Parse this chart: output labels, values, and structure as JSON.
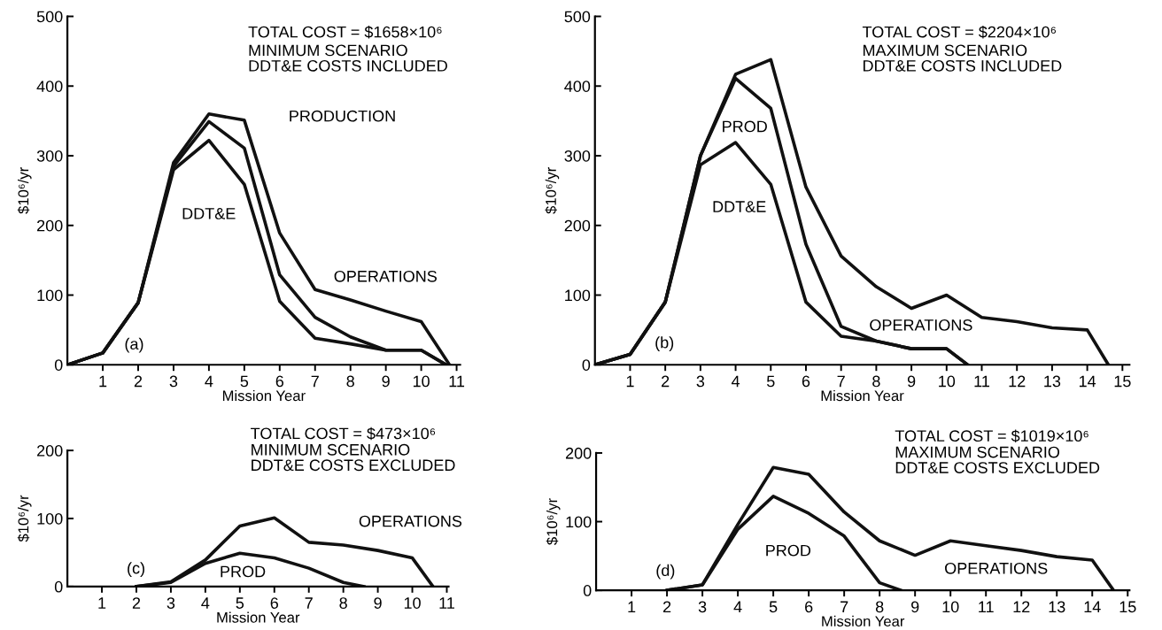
{
  "chart_data": [
    {
      "type": "line",
      "title": "TOTAL COST = $1658×10⁶",
      "subtitle": "MINIMUM SCENARIO\nDDT&E COSTS INCLUDED",
      "xlabel": "Mission Year",
      "ylabel": "$10⁶/yr",
      "xlim": [
        0,
        11.1
      ],
      "xticks": [
        1,
        2,
        3,
        4,
        5,
        6,
        7,
        8,
        9,
        10,
        11
      ],
      "ylim": [
        0,
        500
      ],
      "yticks": [
        0,
        100,
        200,
        300,
        400,
        500
      ],
      "grid": false,
      "legend": false,
      "marker": "none",
      "line_style": "solid",
      "series": [
        {
          "color": "#111111",
          "x": [
            0,
            1,
            2,
            3,
            4,
            5,
            6,
            7,
            8,
            9,
            10,
            10.7
          ],
          "values": [
            0,
            17,
            89,
            280,
            322,
            259,
            91,
            38,
            30,
            21,
            21,
            0
          ]
        },
        {
          "color": "#111111",
          "x": [
            0,
            1,
            2,
            3,
            4,
            5,
            6,
            7,
            8,
            9,
            10,
            10.7
          ],
          "values": [
            0,
            17,
            89,
            285,
            349,
            311,
            129,
            68,
            40,
            21,
            21,
            0
          ]
        },
        {
          "color": "#111111",
          "x": [
            0,
            1,
            2,
            3,
            4,
            5,
            6,
            7,
            8,
            9,
            10,
            10.8
          ],
          "values": [
            0,
            17,
            89,
            290,
            360,
            351,
            189,
            108,
            93,
            77,
            62,
            0
          ]
        }
      ],
      "annotations": [
        "DDT&E",
        "PRODUCTION",
        "OPERATIONS",
        "(a)"
      ]
    },
    {
      "type": "line",
      "title": "TOTAL COST = $2204×10⁶",
      "subtitle": "MAXIMUM SCENARIO\nDDT&E COSTS INCLUDED",
      "xlabel": "Mission Year",
      "ylabel": "$10⁶/yr",
      "xlim": [
        0,
        15.2
      ],
      "xticks": [
        1,
        2,
        3,
        4,
        5,
        6,
        7,
        8,
        9,
        10,
        11,
        12,
        13,
        14,
        15
      ],
      "ylim": [
        0,
        500
      ],
      "yticks": [
        0,
        100,
        200,
        300,
        400,
        500
      ],
      "grid": false,
      "legend": false,
      "marker": "none",
      "line_style": "solid",
      "series": [
        {
          "color": "#111111",
          "x": [
            0,
            1,
            2,
            3,
            4,
            5,
            6,
            7,
            8,
            9,
            10,
            10.6
          ],
          "values": [
            0,
            15,
            90,
            287,
            319,
            259,
            90,
            41,
            34,
            23,
            23,
            0
          ]
        },
        {
          "color": "#111111",
          "x": [
            0,
            1,
            2,
            3,
            4,
            5,
            6,
            7,
            8,
            9,
            10,
            10.6
          ],
          "values": [
            0,
            15,
            90,
            300,
            411,
            368,
            173,
            55,
            34,
            23,
            23,
            0
          ]
        },
        {
          "color": "#111111",
          "x": [
            0,
            1,
            2,
            3,
            4,
            5,
            6,
            7,
            8,
            9,
            10,
            11,
            12,
            13,
            14,
            14.6
          ],
          "values": [
            0,
            15,
            90,
            300,
            417,
            438,
            255,
            156,
            112,
            81,
            100,
            68,
            62,
            53,
            50,
            0
          ]
        }
      ],
      "annotations": [
        "PROD",
        "DDT&E",
        "OPERATIONS",
        "(b)"
      ]
    },
    {
      "type": "line",
      "title": "TOTAL COST = $473×10⁶",
      "subtitle": "MINIMUM SCENARIO\nDDT&E COSTS EXCLUDED",
      "xlabel": "Mission Year",
      "ylabel": "$10⁶/yr",
      "xlim": [
        0,
        11.05
      ],
      "xticks": [
        1,
        2,
        3,
        4,
        5,
        6,
        7,
        8,
        9,
        10,
        11
      ],
      "ylim": [
        0,
        200
      ],
      "yticks": [
        0,
        100,
        200
      ],
      "grid": false,
      "legend": false,
      "marker": "none",
      "line_style": "solid",
      "series": [
        {
          "color": "#111111",
          "x": [
            2,
            3,
            4,
            5,
            6,
            7,
            8,
            8.6
          ],
          "values": [
            0,
            6,
            34,
            49,
            42,
            27,
            6,
            0
          ]
        },
        {
          "color": "#111111",
          "x": [
            2,
            3,
            4,
            5,
            6,
            7,
            8,
            9,
            10,
            10.6
          ],
          "values": [
            0,
            7,
            39,
            89,
            101,
            65,
            61,
            53,
            42,
            0
          ]
        }
      ],
      "annotations": [
        "PROD",
        "OPERATIONS",
        "(c)"
      ]
    },
    {
      "type": "line",
      "title": "TOTAL COST = $1019×10⁶",
      "subtitle": "MAXIMUM SCENARIO\nDDT&E COSTS EXCLUDED",
      "xlabel": "Mission Year",
      "ylabel": "$10⁶/yr",
      "xlim": [
        0,
        15.05
      ],
      "xticks": [
        1,
        2,
        3,
        4,
        5,
        6,
        7,
        8,
        9,
        10,
        11,
        12,
        13,
        14,
        15
      ],
      "ylim": [
        0,
        200
      ],
      "yticks": [
        0,
        100,
        200
      ],
      "grid": false,
      "legend": false,
      "marker": "none",
      "line_style": "solid",
      "series": [
        {
          "color": "#111111",
          "x": [
            2,
            3,
            4,
            5,
            6,
            7,
            8,
            8.6
          ],
          "values": [
            0,
            8,
            89,
            137,
            112,
            79,
            11,
            0
          ]
        },
        {
          "color": "#111111",
          "x": [
            2,
            3,
            4,
            5,
            6,
            7,
            8,
            9,
            10,
            11,
            12,
            13,
            14,
            14.6
          ],
          "values": [
            0,
            8,
            96,
            179,
            169,
            114,
            72,
            51,
            72,
            65,
            58,
            49,
            44,
            0
          ]
        }
      ],
      "annotations": [
        "PROD",
        "OPERATIONS",
        "(d)"
      ]
    }
  ]
}
